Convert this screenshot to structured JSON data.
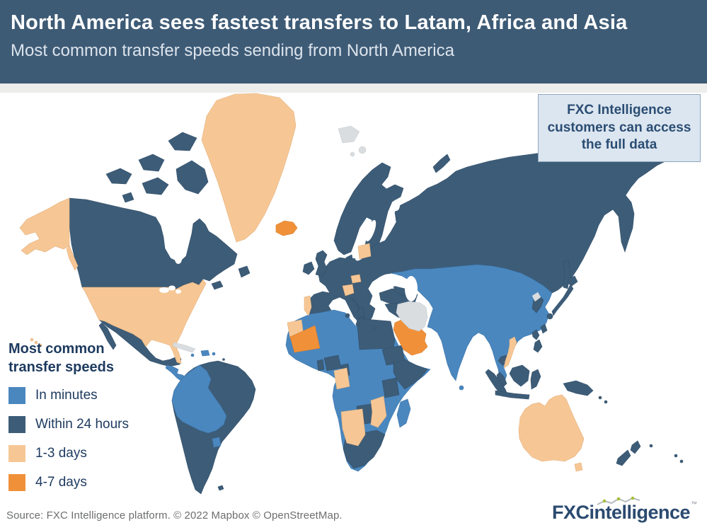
{
  "colors": {
    "in_minutes": "#4a87bf",
    "within_24_hours": "#3d5c77",
    "days_1_3": "#f6c795",
    "days_4_7": "#f0913a",
    "no_data": "#d9dde0",
    "header_bg": "#3e5b76",
    "header_text": "#ffffff",
    "navy_text": "#1d3a5f",
    "info_box_bg": "#dce6f0",
    "info_box_border": "#8fa6bd",
    "info_box_text": "#2b4d73",
    "source_text": "#6d6e70",
    "logo_navy": "#2b4a70",
    "logo_green": "#a6c23d"
  },
  "header": {
    "title": "North America sees fastest transfers to Latam, Africa and Asia",
    "subtitle": "Most common transfer speeds sending from North America"
  },
  "info_box": {
    "text": "FXC Intelligence customers can access the full data"
  },
  "legend": {
    "title": "Most common\ntransfer speeds",
    "items": [
      {
        "key": "in_minutes",
        "label": "In minutes"
      },
      {
        "key": "within_24_hours",
        "label": "Within 24 hours"
      },
      {
        "key": "days_1_3",
        "label": "1-3 days"
      },
      {
        "key": "days_4_7",
        "label": "4-7 days"
      }
    ]
  },
  "footer": {
    "source": "Source: FXC Intelligence platform. © 2022 Mapbox © OpenStreetMap.",
    "logo": {
      "part1": "FXC",
      "part2": "intelligence",
      "tm": "™"
    }
  },
  "chart_data": {
    "type": "heatmap",
    "subtype": "world-choropleth",
    "title": "Most common transfer speeds sending from North America",
    "legend_position": "bottom-left",
    "categories": [
      "In minutes",
      "Within 24 hours",
      "1-3 days",
      "4-7 days"
    ],
    "category_colors": {
      "In minutes": "#4a87bf",
      "Within 24 hours": "#3d5c77",
      "1-3 days": "#f6c795",
      "4-7 days": "#f0913a",
      "No data": "#d9dde0"
    },
    "regions": {
      "In minutes": [
        "China",
        "Mongolia",
        "Central Asia",
        "India",
        "Pakistan",
        "Afghanistan",
        "Myanmar",
        "Thailand",
        "Morocco",
        "Algeria",
        "Chad",
        "Niger",
        "Mali",
        "Senegal",
        "West Africa",
        "DR Congo",
        "Angola",
        "Kenya",
        "Madagascar",
        "Sri Lanka",
        "Colombia",
        "Ecuador",
        "Peru",
        "Bolivia",
        "Paraguay",
        "Uruguay",
        "Central America",
        "Dominican Republic",
        "Kazakhstan"
      ],
      "Within 24 hours": [
        "Canada",
        "Mexico",
        "Venezuela",
        "Brazil",
        "Argentina",
        "Chile",
        "United Kingdom",
        "Ireland",
        "Europe",
        "Scandinavia",
        "Russia",
        "Turkey",
        "Iraq",
        "Syria",
        "Tunisia",
        "Libya",
        "Egypt",
        "Sudan",
        "Nigeria",
        "Ghana",
        "Ethiopia",
        "Somalia",
        "Tanzania",
        "Zambia",
        "Zimbabwe",
        "South Africa",
        "South Korea",
        "Japan",
        "Philippines",
        "Cambodia",
        "Malaysia",
        "Indonesia",
        "Papua New Guinea",
        "New Zealand"
      ],
      "1-3 days": [
        "United States",
        "Alaska",
        "Greenland",
        "Australia",
        "Tasmania",
        "Vietnam",
        "Portugal",
        "Croatia",
        "Hungary",
        "Baltics",
        "Western Sahara",
        "Namibia",
        "Botswana",
        "Mozambique",
        "Congo",
        "Gabon"
      ],
      "4-7 days": [
        "Iceland",
        "Mauritania",
        "Saudi Arabia",
        "Yemen"
      ],
      "No data": [
        "Iran",
        "Cuba",
        "Svalbard",
        "North Korea",
        "Oman"
      ]
    }
  }
}
